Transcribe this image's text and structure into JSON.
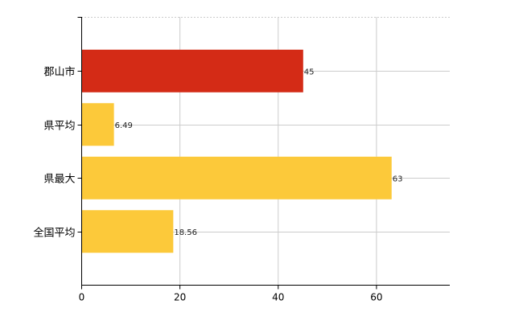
{
  "chart_data": {
    "type": "bar",
    "orientation": "horizontal",
    "categories": [
      "郡山市",
      "県平均",
      "県最大",
      "全国平均"
    ],
    "values": [
      45,
      6.49,
      63,
      18.56
    ],
    "data_labels": [
      "45",
      "6.49",
      "63",
      "18.56"
    ],
    "bar_colors": [
      "#d42b16",
      "#fcc93a",
      "#fcc93a",
      "#fcc93a"
    ],
    "x_ticks": [
      0,
      20,
      40,
      60
    ],
    "xlim": [
      0,
      75
    ],
    "grid": true,
    "title": "",
    "xlabel": "",
    "ylabel": ""
  },
  "colors": {
    "highlight": "#d42b16",
    "bar": "#fcc93a",
    "grid": "#cccccc",
    "axis": "#000000"
  }
}
